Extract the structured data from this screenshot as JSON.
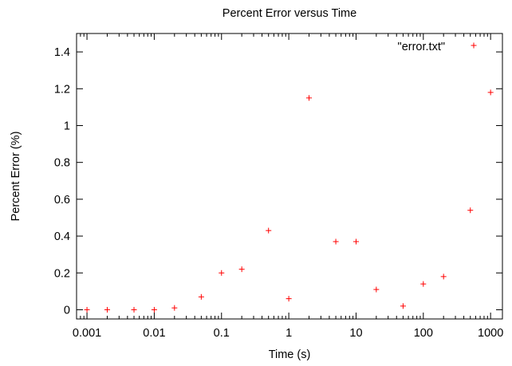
{
  "chart_data": {
    "type": "scatter",
    "title": "Percent Error versus Time",
    "xlabel": "Time (s)",
    "ylabel": "Percent Error (%)",
    "x_scale": "log",
    "xlim": [
      0.0007,
      1500
    ],
    "ylim": [
      -0.05,
      1.5
    ],
    "grid": false,
    "legend_position": "top-right",
    "x_ticks": [
      {
        "value": 0.001,
        "label": "0.001"
      },
      {
        "value": 0.01,
        "label": "0.01"
      },
      {
        "value": 0.1,
        "label": "0.1"
      },
      {
        "value": 1,
        "label": "1"
      },
      {
        "value": 10,
        "label": "10"
      },
      {
        "value": 100,
        "label": "100"
      },
      {
        "value": 1000,
        "label": "1000"
      }
    ],
    "y_ticks": [
      {
        "value": 0,
        "label": "0"
      },
      {
        "value": 0.2,
        "label": "0.2"
      },
      {
        "value": 0.4,
        "label": "0.4"
      },
      {
        "value": 0.6,
        "label": "0.6"
      },
      {
        "value": 0.8,
        "label": "0.8"
      },
      {
        "value": 1,
        "label": "1"
      },
      {
        "value": 1.2,
        "label": "1.2"
      },
      {
        "value": 1.4,
        "label": "1.4"
      }
    ],
    "series": [
      {
        "name": "\"error.txt\"",
        "color": "#ff0000",
        "marker": "plus",
        "points": [
          {
            "x": 0.001,
            "y": 0.0
          },
          {
            "x": 0.002,
            "y": 0.0
          },
          {
            "x": 0.005,
            "y": 0.0
          },
          {
            "x": 0.01,
            "y": 0.0
          },
          {
            "x": 0.02,
            "y": 0.01
          },
          {
            "x": 0.05,
            "y": 0.07
          },
          {
            "x": 0.1,
            "y": 0.2
          },
          {
            "x": 0.2,
            "y": 0.22
          },
          {
            "x": 0.5,
            "y": 0.43
          },
          {
            "x": 1,
            "y": 0.06
          },
          {
            "x": 2,
            "y": 1.15
          },
          {
            "x": 5,
            "y": 0.37
          },
          {
            "x": 10,
            "y": 0.37
          },
          {
            "x": 20,
            "y": 0.11
          },
          {
            "x": 50,
            "y": 0.02
          },
          {
            "x": 100,
            "y": 0.14
          },
          {
            "x": 200,
            "y": 0.18
          },
          {
            "x": 500,
            "y": 0.54
          },
          {
            "x": 1000,
            "y": 1.18
          }
        ]
      }
    ]
  }
}
